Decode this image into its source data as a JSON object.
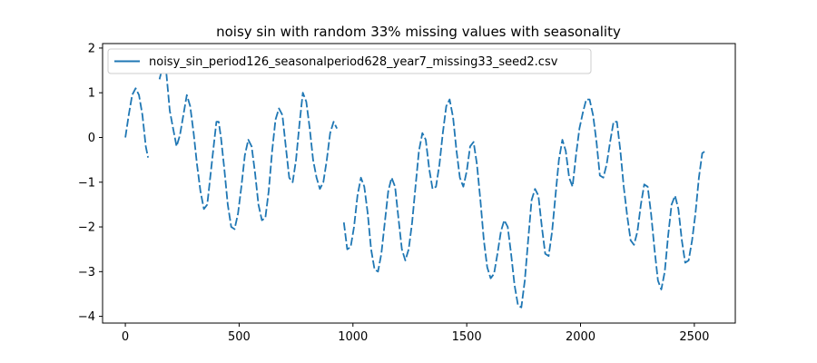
{
  "chart_data": {
    "type": "line",
    "title": "noisy sin with random 33% missing values with seasonality",
    "xlabel": "",
    "ylabel": "",
    "xlim": [
      -100,
      2680
    ],
    "ylim": [
      -4.15,
      2.1
    ],
    "xticks": [
      0,
      500,
      1000,
      1500,
      2000,
      2500
    ],
    "yticks": [
      -4,
      -3,
      -2,
      -1,
      0,
      1,
      2
    ],
    "grid": false,
    "legend_position": "upper-left",
    "colors": {
      "series": "#1f77b4",
      "axes": "#000000",
      "background": "#ffffff"
    },
    "series": [
      {
        "name": "noisy_sin_period126_seasonalperiod628_year7_missing33_seed2.csv",
        "color": "#1f77b4",
        "points": [
          [
            0,
            0.0
          ],
          [
            15,
            0.5
          ],
          [
            30,
            0.95
          ],
          [
            45,
            1.1
          ],
          [
            60,
            0.95
          ],
          [
            75,
            0.5
          ],
          [
            90,
            -0.2
          ],
          [
            100,
            -0.45
          ],
          [
            110,
            null
          ],
          [
            125,
            0.5
          ],
          [
            140,
            null
          ],
          [
            150,
            1.3
          ],
          [
            165,
            1.6
          ],
          [
            180,
            1.45
          ],
          [
            195,
            0.6
          ],
          [
            210,
            0.2
          ],
          [
            225,
            -0.2
          ],
          [
            240,
            0.05
          ],
          [
            255,
            0.5
          ],
          [
            270,
            0.95
          ],
          [
            285,
            0.7
          ],
          [
            300,
            0.1
          ],
          [
            315,
            -0.6
          ],
          [
            330,
            -1.2
          ],
          [
            345,
            -1.6
          ],
          [
            360,
            -1.5
          ],
          [
            375,
            -0.8
          ],
          [
            390,
            -0.1
          ],
          [
            400,
            0.35
          ],
          [
            410,
            0.35
          ],
          [
            420,
            0.0
          ],
          [
            435,
            -0.7
          ],
          [
            450,
            -1.5
          ],
          [
            465,
            -2.0
          ],
          [
            480,
            -2.05
          ],
          [
            495,
            -1.7
          ],
          [
            510,
            -1.1
          ],
          [
            525,
            -0.4
          ],
          [
            540,
            -0.05
          ],
          [
            555,
            -0.2
          ],
          [
            570,
            -0.8
          ],
          [
            585,
            -1.5
          ],
          [
            600,
            -1.85
          ],
          [
            615,
            -1.8
          ],
          [
            630,
            -1.2
          ],
          [
            645,
            -0.3
          ],
          [
            660,
            0.4
          ],
          [
            675,
            0.65
          ],
          [
            690,
            0.5
          ],
          [
            705,
            -0.2
          ],
          [
            720,
            -0.9
          ],
          [
            735,
            -1.0
          ],
          [
            750,
            -0.5
          ],
          [
            765,
            0.3
          ],
          [
            780,
            1.0
          ],
          [
            795,
            0.8
          ],
          [
            810,
            0.2
          ],
          [
            825,
            -0.5
          ],
          [
            840,
            -0.9
          ],
          [
            855,
            -1.15
          ],
          [
            870,
            -1.0
          ],
          [
            885,
            -0.5
          ],
          [
            900,
            0.1
          ],
          [
            915,
            0.35
          ],
          [
            930,
            0.2
          ],
          [
            945,
            null
          ],
          [
            960,
            -1.9
          ],
          [
            975,
            -2.5
          ],
          [
            990,
            -2.45
          ],
          [
            1005,
            -2.0
          ],
          [
            1020,
            -1.3
          ],
          [
            1035,
            -0.9
          ],
          [
            1050,
            -1.1
          ],
          [
            1065,
            -1.7
          ],
          [
            1080,
            -2.5
          ],
          [
            1095,
            -2.95
          ],
          [
            1110,
            -3.0
          ],
          [
            1125,
            -2.6
          ],
          [
            1140,
            -1.9
          ],
          [
            1155,
            -1.2
          ],
          [
            1170,
            -0.9
          ],
          [
            1185,
            -1.1
          ],
          [
            1200,
            -1.8
          ],
          [
            1215,
            -2.5
          ],
          [
            1230,
            -2.75
          ],
          [
            1245,
            -2.5
          ],
          [
            1260,
            -1.9
          ],
          [
            1275,
            -1.1
          ],
          [
            1290,
            -0.3
          ],
          [
            1305,
            0.1
          ],
          [
            1320,
            -0.05
          ],
          [
            1335,
            -0.7
          ],
          [
            1350,
            -1.15
          ],
          [
            1365,
            -1.1
          ],
          [
            1380,
            -0.6
          ],
          [
            1395,
            0.1
          ],
          [
            1410,
            0.7
          ],
          [
            1425,
            0.85
          ],
          [
            1440,
            0.45
          ],
          [
            1455,
            -0.3
          ],
          [
            1470,
            -0.9
          ],
          [
            1485,
            -1.1
          ],
          [
            1500,
            -0.75
          ],
          [
            1515,
            -0.2
          ],
          [
            1530,
            -0.1
          ],
          [
            1545,
            -0.6
          ],
          [
            1560,
            -1.4
          ],
          [
            1575,
            -2.3
          ],
          [
            1590,
            -2.9
          ],
          [
            1605,
            -3.15
          ],
          [
            1620,
            -3.05
          ],
          [
            1635,
            -2.6
          ],
          [
            1650,
            -2.1
          ],
          [
            1665,
            -1.85
          ],
          [
            1680,
            -2.0
          ],
          [
            1695,
            -2.6
          ],
          [
            1710,
            -3.3
          ],
          [
            1725,
            -3.75
          ],
          [
            1740,
            -3.8
          ],
          [
            1755,
            -3.2
          ],
          [
            1770,
            -2.3
          ],
          [
            1785,
            -1.4
          ],
          [
            1800,
            -1.15
          ],
          [
            1815,
            -1.3
          ],
          [
            1830,
            -2.0
          ],
          [
            1845,
            -2.6
          ],
          [
            1860,
            -2.65
          ],
          [
            1875,
            -2.1
          ],
          [
            1890,
            -1.3
          ],
          [
            1905,
            -0.5
          ],
          [
            1920,
            -0.05
          ],
          [
            1935,
            -0.3
          ],
          [
            1950,
            -0.9
          ],
          [
            1965,
            -1.1
          ],
          [
            1980,
            -0.4
          ],
          [
            1995,
            0.2
          ],
          [
            2010,
            0.55
          ],
          [
            2025,
            0.85
          ],
          [
            2040,
            0.85
          ],
          [
            2055,
            0.5
          ],
          [
            2070,
            -0.1
          ],
          [
            2085,
            -0.85
          ],
          [
            2100,
            -0.9
          ],
          [
            2115,
            -0.6
          ],
          [
            2130,
            -0.1
          ],
          [
            2145,
            0.35
          ],
          [
            2160,
            0.35
          ],
          [
            2175,
            -0.3
          ],
          [
            2190,
            -1.1
          ],
          [
            2205,
            -1.75
          ],
          [
            2220,
            -2.3
          ],
          [
            2235,
            -2.4
          ],
          [
            2250,
            -2.1
          ],
          [
            2265,
            -1.5
          ],
          [
            2280,
            -1.05
          ],
          [
            2295,
            -1.1
          ],
          [
            2310,
            -1.7
          ],
          [
            2325,
            -2.5
          ],
          [
            2340,
            -3.2
          ],
          [
            2355,
            -3.4
          ],
          [
            2370,
            -3.0
          ],
          [
            2385,
            -2.2
          ],
          [
            2400,
            -1.5
          ],
          [
            2415,
            -1.3
          ],
          [
            2430,
            -1.6
          ],
          [
            2445,
            -2.3
          ],
          [
            2460,
            -2.8
          ],
          [
            2475,
            -2.75
          ],
          [
            2490,
            -2.3
          ],
          [
            2505,
            -1.7
          ],
          [
            2520,
            -0.9
          ],
          [
            2535,
            -0.35
          ],
          [
            2550,
            -0.3
          ]
        ]
      }
    ]
  }
}
